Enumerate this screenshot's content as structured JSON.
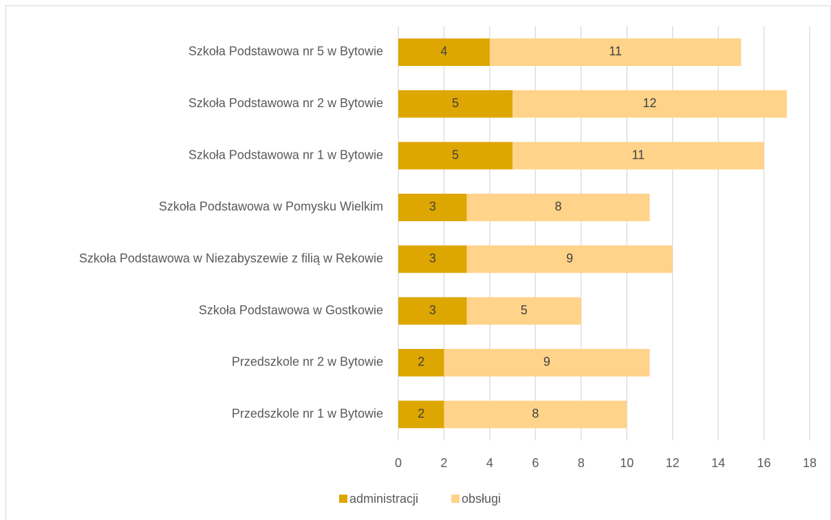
{
  "chart_data": {
    "type": "bar",
    "orientation": "horizontal",
    "stacked": true,
    "categories": [
      "Szkoła Podstawowa nr 5 w Bytowie",
      "Szkoła Podstawowa nr 2 w Bytowie",
      "Szkoła Podstawowa nr 1 w Bytowie",
      "Szkoła Podstawowa w Pomysku Wielkim",
      "Szkoła Podstawowa w Niezabyszewie z filią w Rekowie",
      "Szkoła Podstawowa w Gostkowie",
      "Przedszkole nr 2 w Bytowie",
      "Przedszkole nr 1 w Bytowie"
    ],
    "series": [
      {
        "name": "administracji",
        "color": "#dea600",
        "values": [
          4,
          5,
          5,
          3,
          3,
          3,
          2,
          2
        ]
      },
      {
        "name": "obsługi",
        "color": "#ffd38a",
        "values": [
          11,
          12,
          11,
          8,
          9,
          5,
          9,
          8
        ]
      }
    ],
    "xlim": [
      0,
      18
    ],
    "xticks": [
      0,
      2,
      4,
      6,
      8,
      10,
      12,
      14,
      16,
      18
    ],
    "grid": true,
    "legend": "bottom"
  }
}
